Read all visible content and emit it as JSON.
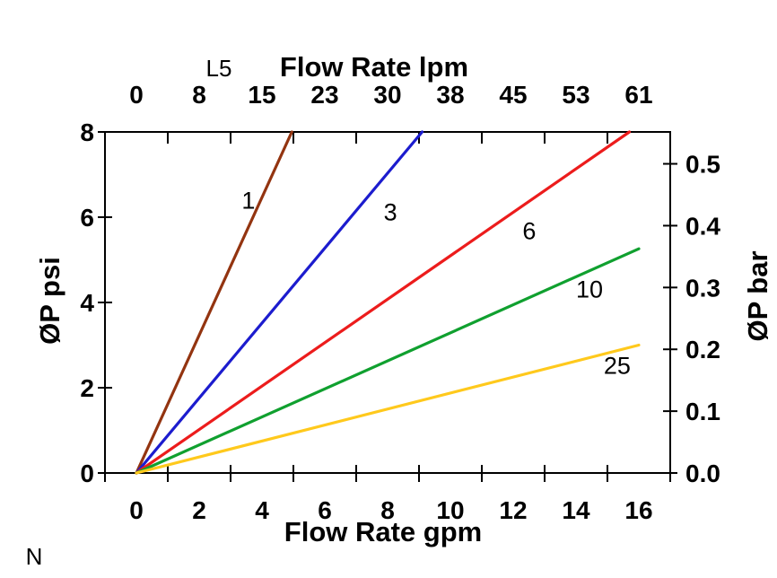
{
  "chart_data": {
    "type": "line",
    "grid": false,
    "top_axis": {
      "title": "Flow Rate lpm",
      "tick_labels": [
        "0",
        "8",
        "15",
        "23",
        "30",
        "38",
        "45",
        "53",
        "61"
      ],
      "tick_positions_gpm": [
        0,
        2,
        4,
        6,
        8,
        10,
        12,
        14,
        16
      ]
    },
    "bottom_axis": {
      "title": "Flow Rate gpm",
      "tick_labels": [
        "0",
        "2",
        "4",
        "6",
        "8",
        "10",
        "12",
        "14",
        "16"
      ],
      "tick_positions_gpm": [
        0,
        2,
        4,
        6,
        8,
        10,
        12,
        14,
        16
      ],
      "xlim_gpm": [
        -1,
        17
      ],
      "minor_tick_positions_gpm": [
        -1,
        1,
        3,
        5,
        7,
        9,
        11,
        13,
        15,
        17
      ]
    },
    "left_axis": {
      "title": "ØP psi",
      "tick_labels": [
        "0",
        "2",
        "4",
        "6",
        "8"
      ],
      "tick_values_psi": [
        0,
        2,
        4,
        6,
        8
      ],
      "ylim_psi": [
        0,
        8
      ]
    },
    "right_axis": {
      "title": "ØP bar",
      "tick_labels": [
        "0.0",
        "0.1",
        "0.2",
        "0.3",
        "0.4",
        "0.5"
      ],
      "tick_values_bar": [
        0,
        0.1,
        0.2,
        0.3,
        0.4,
        0.5
      ],
      "psi_per_bar": 14.5038
    },
    "series": [
      {
        "label": "1",
        "color": "#933410",
        "points_gpm_psi": [
          [
            0,
            0
          ],
          [
            4.95,
            8
          ]
        ],
        "label_at_gpm_psi": [
          3.57,
          6.4
        ]
      },
      {
        "label": "3",
        "color": "#1C1CCE",
        "points_gpm_psi": [
          [
            0,
            0
          ],
          [
            9.1,
            8
          ]
        ],
        "label_at_gpm_psi": [
          8.09,
          6.13
        ]
      },
      {
        "label": "6",
        "color": "#EC1C1C",
        "points_gpm_psi": [
          [
            0,
            0
          ],
          [
            15.7,
            8
          ]
        ],
        "label_at_gpm_psi": [
          12.51,
          5.68
        ]
      },
      {
        "label": "10",
        "color": "#10A02F",
        "points_gpm_psi": [
          [
            0,
            0
          ],
          [
            16,
            5.26
          ]
        ],
        "label_at_gpm_psi": [
          14.43,
          4.32
        ]
      },
      {
        "label": "25",
        "color": "#FFC91C",
        "points_gpm_psi": [
          [
            0,
            0
          ],
          [
            16,
            3.0
          ]
        ],
        "label_at_gpm_psi": [
          15.31,
          2.53
        ]
      }
    ],
    "annotations": {
      "top_left_code": "L5",
      "bottom_left_code": "N"
    },
    "line_width": 3.2,
    "text_color": "#000000",
    "background_color": "#ffffff"
  }
}
